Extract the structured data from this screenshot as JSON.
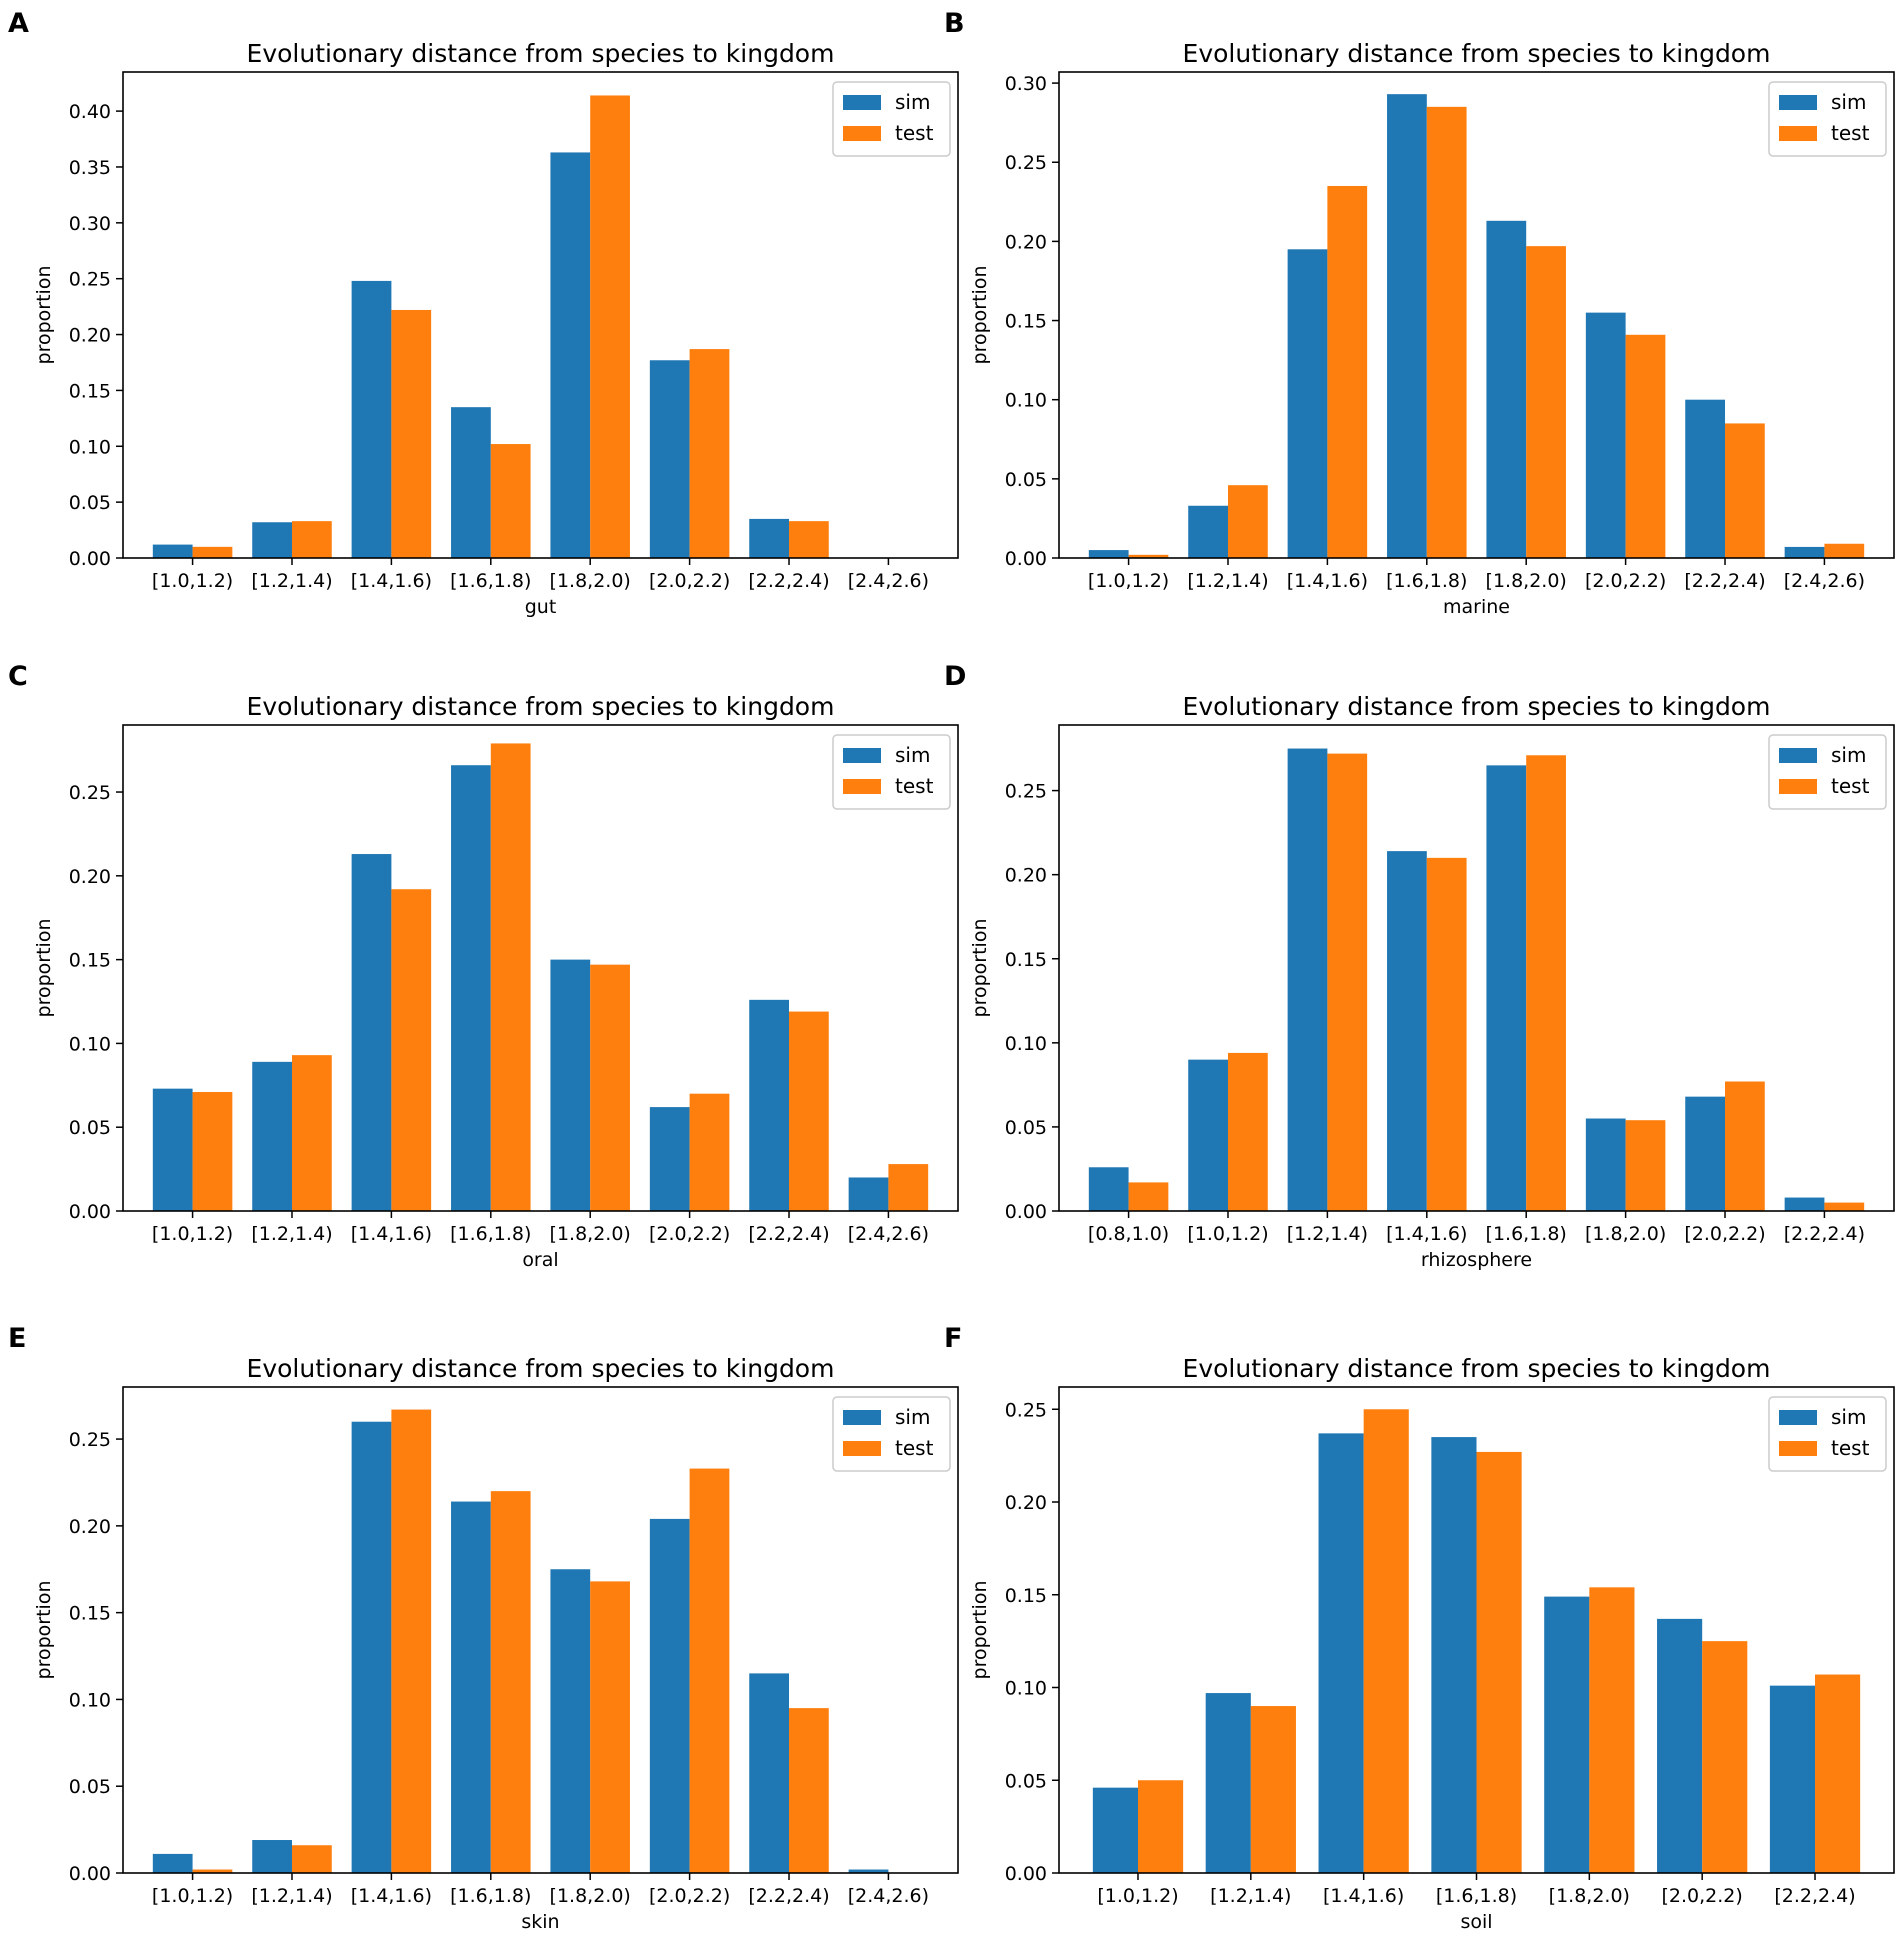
{
  "colors": {
    "sim": "#1f77b4",
    "test": "#ff7f0e",
    "axis": "#000000",
    "background": "#ffffff"
  },
  "chart_data": [
    {
      "panel_label": "A",
      "type": "bar",
      "title": "Evolutionary distance from species to kingdom",
      "xlabel": "gut",
      "ylabel": "proportion",
      "ylim": [
        0,
        0.435
      ],
      "yticks": [
        "0.00",
        "0.05",
        "0.10",
        "0.15",
        "0.20",
        "0.25",
        "0.30",
        "0.35",
        "0.40"
      ],
      "legend": {
        "position": "top-right",
        "entries": [
          "sim",
          "test"
        ]
      },
      "categories": [
        "[1.0,1.2)",
        "[1.2,1.4)",
        "[1.4,1.6)",
        "[1.6,1.8)",
        "[1.8,2.0)",
        "[2.0,2.2)",
        "[2.2,2.4)",
        "[2.4,2.6)"
      ],
      "series": [
        {
          "name": "sim",
          "values": [
            0.012,
            0.032,
            0.248,
            0.135,
            0.363,
            0.177,
            0.035,
            0.0
          ]
        },
        {
          "name": "test",
          "values": [
            0.01,
            0.033,
            0.222,
            0.102,
            0.414,
            0.187,
            0.033,
            0.0
          ]
        }
      ]
    },
    {
      "panel_label": "B",
      "type": "bar",
      "title": "Evolutionary distance from species to kingdom",
      "xlabel": "marine",
      "ylabel": "proportion",
      "ylim": [
        0,
        0.307
      ],
      "yticks": [
        "0.00",
        "0.05",
        "0.10",
        "0.15",
        "0.20",
        "0.25",
        "0.30"
      ],
      "legend": {
        "position": "top-right",
        "entries": [
          "sim",
          "test"
        ]
      },
      "categories": [
        "[1.0,1.2)",
        "[1.2,1.4)",
        "[1.4,1.6)",
        "[1.6,1.8)",
        "[1.8,2.0)",
        "[2.0,2.2)",
        "[2.2,2.4)",
        "[2.4,2.6)"
      ],
      "series": [
        {
          "name": "sim",
          "values": [
            0.005,
            0.033,
            0.195,
            0.293,
            0.213,
            0.155,
            0.1,
            0.007
          ]
        },
        {
          "name": "test",
          "values": [
            0.002,
            0.046,
            0.235,
            0.285,
            0.197,
            0.141,
            0.085,
            0.009
          ]
        }
      ]
    },
    {
      "panel_label": "C",
      "type": "bar",
      "title": "Evolutionary distance from species to kingdom",
      "xlabel": "oral",
      "ylabel": "proportion",
      "ylim": [
        0,
        0.29
      ],
      "yticks": [
        "0.00",
        "0.05",
        "0.10",
        "0.15",
        "0.20",
        "0.25"
      ],
      "legend": {
        "position": "top-right",
        "entries": [
          "sim",
          "test"
        ]
      },
      "categories": [
        "[1.0,1.2)",
        "[1.2,1.4)",
        "[1.4,1.6)",
        "[1.6,1.8)",
        "[1.8,2.0)",
        "[2.0,2.2)",
        "[2.2,2.4)",
        "[2.4,2.6)"
      ],
      "series": [
        {
          "name": "sim",
          "values": [
            0.073,
            0.089,
            0.213,
            0.266,
            0.15,
            0.062,
            0.126,
            0.02
          ]
        },
        {
          "name": "test",
          "values": [
            0.071,
            0.093,
            0.192,
            0.279,
            0.147,
            0.07,
            0.119,
            0.028
          ]
        }
      ]
    },
    {
      "panel_label": "D",
      "type": "bar",
      "title": "Evolutionary distance from species to kingdom",
      "xlabel": "rhizosphere",
      "ylabel": "proportion",
      "ylim": [
        0,
        0.289
      ],
      "yticks": [
        "0.00",
        "0.05",
        "0.10",
        "0.15",
        "0.20",
        "0.25"
      ],
      "legend": {
        "position": "top-right",
        "entries": [
          "sim",
          "test"
        ]
      },
      "categories": [
        "[0.8,1.0)",
        "[1.0,1.2)",
        "[1.2,1.4)",
        "[1.4,1.6)",
        "[1.6,1.8)",
        "[1.8,2.0)",
        "[2.0,2.2)",
        "[2.2,2.4)"
      ],
      "series": [
        {
          "name": "sim",
          "values": [
            0.026,
            0.09,
            0.275,
            0.214,
            0.265,
            0.055,
            0.068,
            0.008
          ]
        },
        {
          "name": "test",
          "values": [
            0.017,
            0.094,
            0.272,
            0.21,
            0.271,
            0.054,
            0.077,
            0.005
          ]
        }
      ]
    },
    {
      "panel_label": "E",
      "type": "bar",
      "title": "Evolutionary distance from species to kingdom",
      "xlabel": "skin",
      "ylabel": "proportion",
      "ylim": [
        0,
        0.28
      ],
      "yticks": [
        "0.00",
        "0.05",
        "0.10",
        "0.15",
        "0.20",
        "0.25"
      ],
      "legend": {
        "position": "top-right",
        "entries": [
          "sim",
          "test"
        ]
      },
      "categories": [
        "[1.0,1.2)",
        "[1.2,1.4)",
        "[1.4,1.6)",
        "[1.6,1.8)",
        "[1.8,2.0)",
        "[2.0,2.2)",
        "[2.2,2.4)",
        "[2.4,2.6)"
      ],
      "series": [
        {
          "name": "sim",
          "values": [
            0.011,
            0.019,
            0.26,
            0.214,
            0.175,
            0.204,
            0.115,
            0.002
          ]
        },
        {
          "name": "test",
          "values": [
            0.002,
            0.016,
            0.267,
            0.22,
            0.168,
            0.233,
            0.095,
            0.0
          ]
        }
      ]
    },
    {
      "panel_label": "F",
      "type": "bar",
      "title": "Evolutionary distance from species to kingdom",
      "xlabel": "soil",
      "ylabel": "proportion",
      "ylim": [
        0,
        0.262
      ],
      "yticks": [
        "0.00",
        "0.05",
        "0.10",
        "0.15",
        "0.20",
        "0.25"
      ],
      "legend": {
        "position": "top-right",
        "entries": [
          "sim",
          "test"
        ]
      },
      "categories": [
        "[1.0,1.2)",
        "[1.2,1.4)",
        "[1.4,1.6)",
        "[1.6,1.8)",
        "[1.8,2.0)",
        "[2.0,2.2)",
        "[2.2,2.4)"
      ],
      "series": [
        {
          "name": "sim",
          "values": [
            0.046,
            0.097,
            0.237,
            0.235,
            0.149,
            0.137,
            0.101
          ]
        },
        {
          "name": "test",
          "values": [
            0.05,
            0.09,
            0.25,
            0.227,
            0.154,
            0.125,
            0.107
          ]
        }
      ]
    }
  ]
}
